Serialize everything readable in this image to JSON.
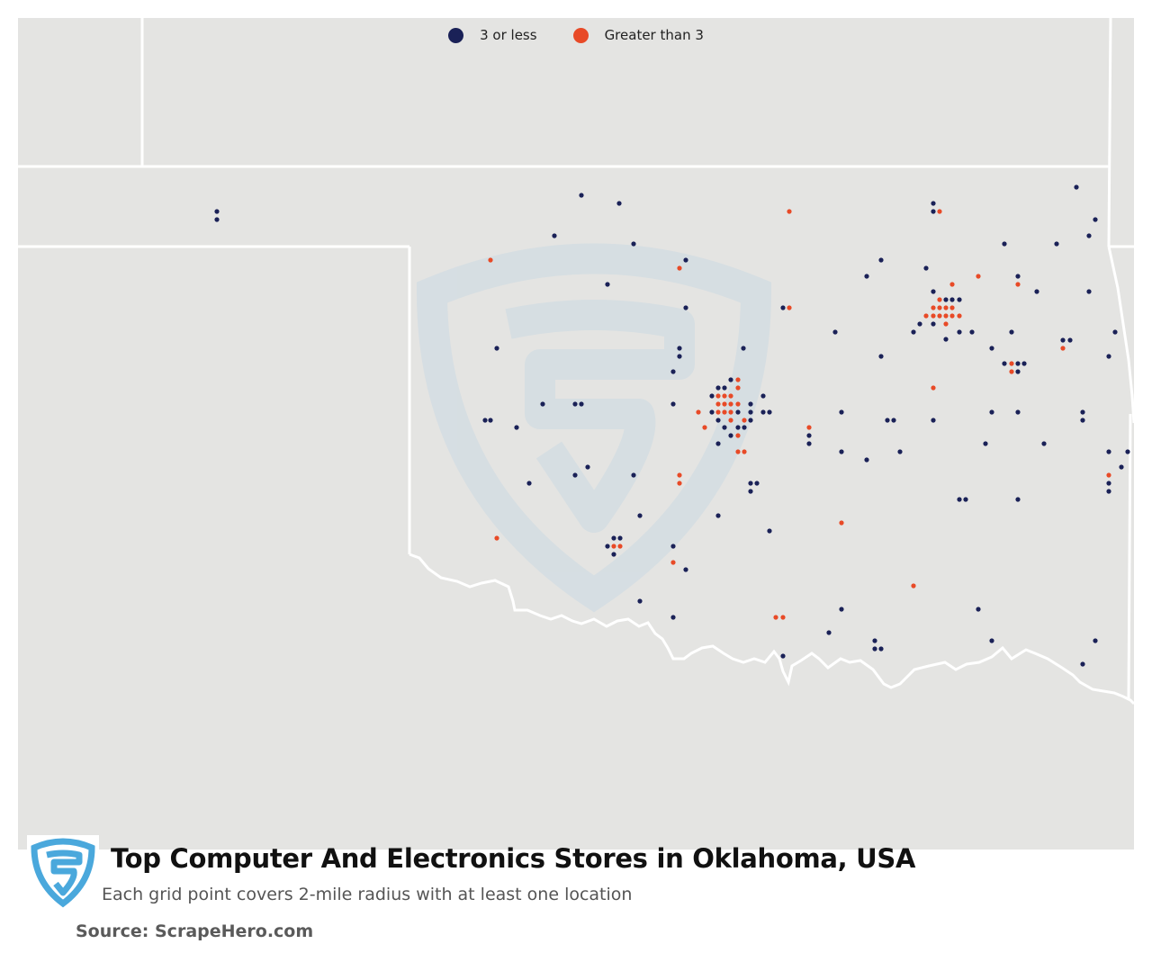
{
  "legend": [
    {
      "label": "3 or less",
      "color": "#1a2157"
    },
    {
      "label": "Greater than 3",
      "color": "#e84a27"
    }
  ],
  "colors": {
    "land": "#e4e4e2",
    "border": "#ffffff",
    "watermark": "#d4dde3",
    "logo_blue": "#4aa8dc"
  },
  "title": "Top Computer And Electronics Stores in Oklahoma, USA",
  "subtitle": "Each grid point covers 2-mile radius with at least one location",
  "source": "Source: ScrapeHero.com",
  "logo_icon": "scrapehero-shield-logo",
  "watermark_icon": "scrapehero-shield-watermark"
}
